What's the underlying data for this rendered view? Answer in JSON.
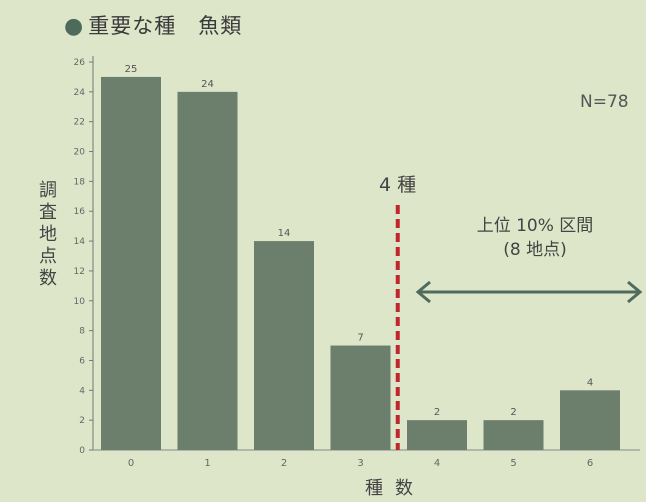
{
  "title": "重要な種　魚類",
  "annotations": {
    "n": "N=78",
    "cutoff": "4 種",
    "range_line1": "上位 10% 区間",
    "range_line2": "(8 地点)"
  },
  "colors": {
    "background": "#dde6c9",
    "bar": "#6b7f6c",
    "cutoff_line": "#c0262d",
    "arrow": "#4f6b5f"
  },
  "chart_data": {
    "type": "bar",
    "title": "重要な種　魚類",
    "xlabel": "種数",
    "ylabel": "調査地点数",
    "categories": [
      "0",
      "1",
      "2",
      "3",
      "4",
      "5",
      "6"
    ],
    "values": [
      25,
      24,
      14,
      7,
      2,
      2,
      4
    ],
    "data_labels": [
      "25",
      "24",
      "14",
      "7",
      "2",
      "2",
      "4"
    ],
    "ylim": [
      0,
      26
    ],
    "yticks": [
      "0",
      "2",
      "4",
      "6",
      "8",
      "10",
      "12",
      "14",
      "16",
      "18",
      "20",
      "22",
      "24",
      "26"
    ],
    "grid": false,
    "cutoff_x": 3.5,
    "highlight_range": [
      3.5,
      6.5
    ]
  }
}
